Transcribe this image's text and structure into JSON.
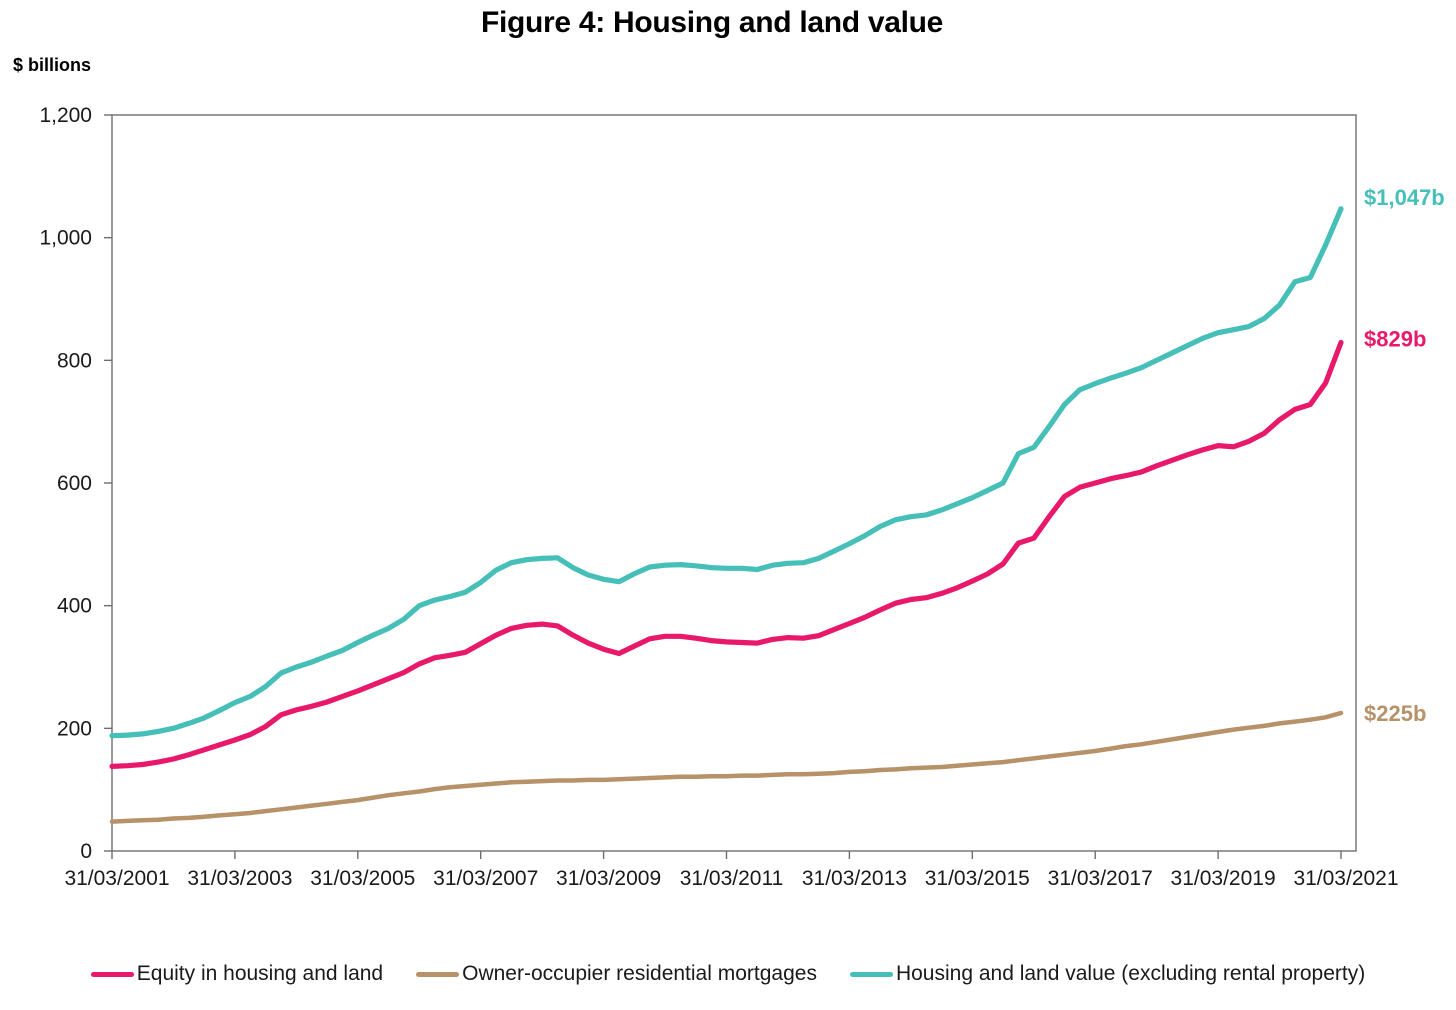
{
  "title": "Figure 4: Housing and land value",
  "y_axis_unit_label": "$ billions",
  "colors": {
    "equity": "#E8196B",
    "mortgages": "#B79168",
    "housing_value": "#45BFB7",
    "axis": "#6E6E6E",
    "text": "#000000"
  },
  "legend": [
    {
      "key": "equity",
      "label": "Equity in housing and land",
      "color": "#E8196B"
    },
    {
      "key": "mortgages",
      "label": "Owner-occupier residential mortgages",
      "color": "#B79168"
    },
    {
      "key": "housing_value",
      "label": "Housing and land value (excluding rental property)",
      "color": "#45BFB7"
    }
  ],
  "chart_data": {
    "type": "line",
    "title": "Figure 4: Housing and land value",
    "ylabel": "$ billions",
    "xlabel": "",
    "ylim": [
      0,
      1200
    ],
    "grid": false,
    "legend_position": "bottom",
    "axis_color": "#6E6E6E",
    "y_ticks": [
      0,
      200,
      400,
      600,
      800,
      1000,
      1200
    ],
    "y_tick_labels": [
      "0",
      "200",
      "400",
      "600",
      "800",
      "1,000",
      "1,200"
    ],
    "x_tick_labels": [
      "31/03/2001",
      "31/03/2003",
      "31/03/2005",
      "31/03/2007",
      "31/03/2009",
      "31/03/2011",
      "31/03/2013",
      "31/03/2015",
      "31/03/2017",
      "31/03/2019",
      "31/03/2021"
    ],
    "x_frequency": "quarterly, 31/03/2001 to 31/03/2021 (81 points)",
    "series": [
      {
        "key": "equity",
        "name": "Equity in housing and land",
        "color": "#E8196B",
        "end_label": "$829b",
        "values": [
          138,
          139,
          141,
          145,
          150,
          157,
          165,
          173,
          181,
          190,
          203,
          222,
          230,
          236,
          243,
          252,
          261,
          271,
          281,
          291,
          305,
          315,
          319,
          324,
          338,
          352,
          363,
          368,
          370,
          367,
          352,
          339,
          329,
          322,
          334,
          346,
          350,
          350,
          347,
          343,
          341,
          340,
          339,
          345,
          348,
          347,
          351,
          361,
          371,
          381,
          393,
          404,
          410,
          413,
          420,
          429,
          440,
          452,
          468,
          502,
          510,
          545,
          578,
          593,
          600,
          607,
          612,
          618,
          628,
          637,
          646,
          654,
          661,
          659,
          668,
          681,
          703,
          720,
          728,
          763,
          829
        ]
      },
      {
        "key": "mortgages",
        "name": "Owner-occupier residential mortgages",
        "color": "#B79168",
        "end_label": "$225b",
        "values": [
          48,
          49,
          50,
          51,
          53,
          54,
          56,
          58,
          60,
          62,
          65,
          68,
          71,
          74,
          77,
          80,
          83,
          87,
          91,
          94,
          97,
          101,
          104,
          106,
          108,
          110,
          112,
          113,
          114,
          115,
          115,
          116,
          116,
          117,
          118,
          119,
          120,
          121,
          121,
          122,
          122,
          123,
          123,
          124,
          125,
          125,
          126,
          127,
          129,
          130,
          132,
          133,
          135,
          136,
          137,
          139,
          141,
          143,
          145,
          148,
          151,
          154,
          157,
          160,
          163,
          167,
          171,
          174,
          178,
          182,
          186,
          190,
          194,
          198,
          201,
          204,
          208,
          211,
          214,
          218,
          225
        ]
      },
      {
        "key": "housing_value",
        "name": "Housing and land value (excluding rental property)",
        "color": "#45BFB7",
        "end_label": "$1,047b",
        "values": [
          188,
          189,
          191,
          195,
          200,
          208,
          217,
          229,
          242,
          252,
          268,
          290,
          300,
          308,
          318,
          327,
          340,
          352,
          363,
          378,
          400,
          409,
          415,
          422,
          438,
          458,
          470,
          475,
          477,
          478,
          462,
          450,
          443,
          439,
          452,
          463,
          466,
          467,
          465,
          462,
          461,
          461,
          459,
          466,
          469,
          470,
          477,
          489,
          501,
          514,
          529,
          540,
          545,
          548,
          556,
          566,
          576,
          588,
          600,
          648,
          658,
          692,
          728,
          752,
          762,
          771,
          779,
          788,
          800,
          812,
          824,
          836,
          845,
          850,
          855,
          868,
          890,
          928,
          935,
          988,
          1047
        ]
      }
    ]
  }
}
